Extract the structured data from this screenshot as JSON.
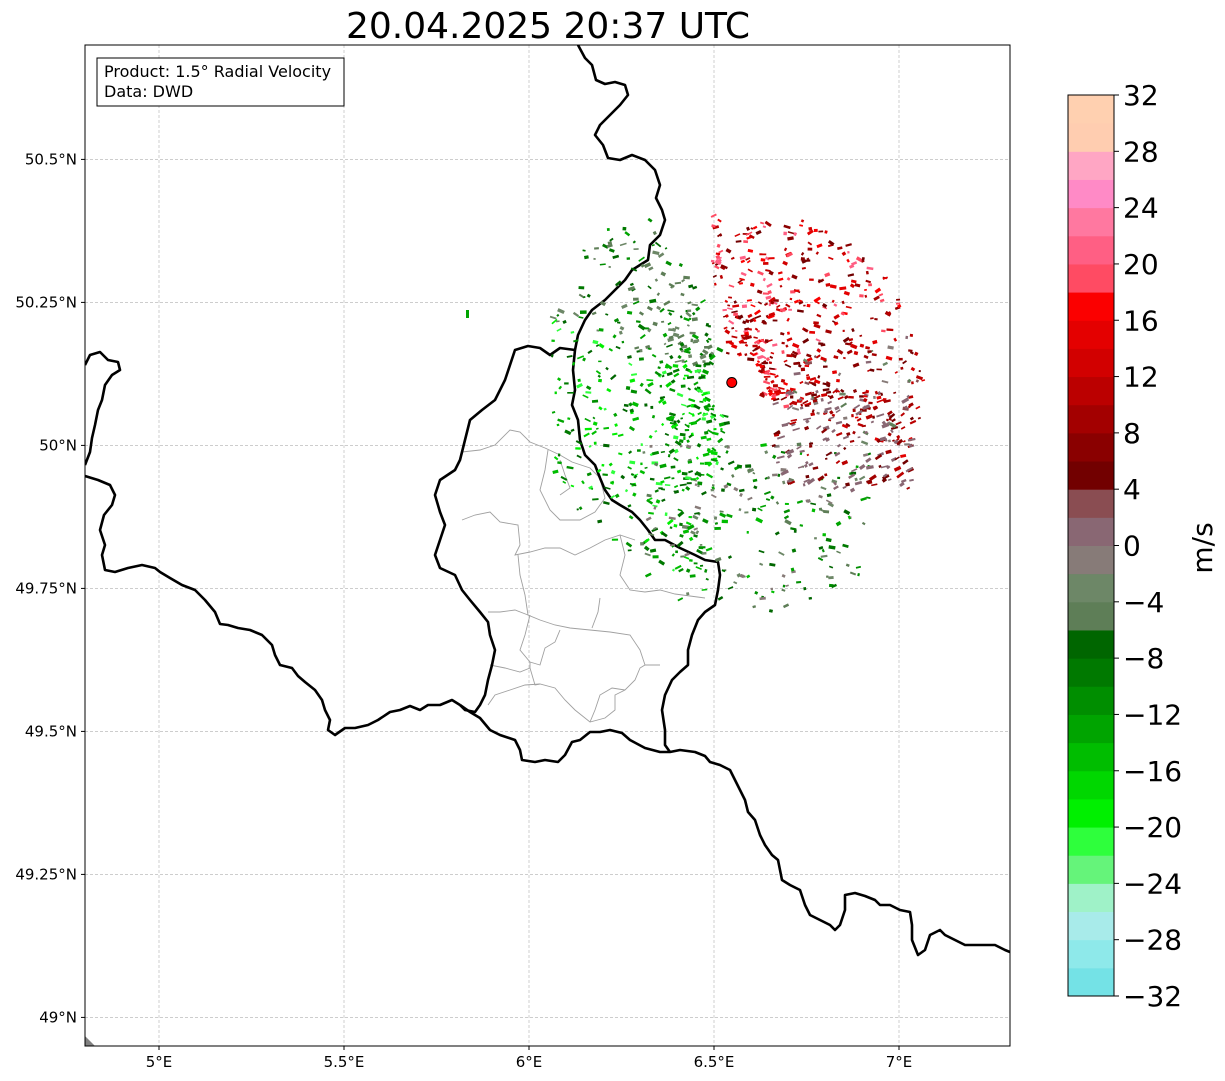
{
  "title": "20.04.2025 20:37 UTC",
  "info_box": {
    "product_line": "Product: 1.5° Radial Velocity",
    "data_line": "Data: DWD"
  },
  "map": {
    "lon_range": [
      4.8,
      7.3
    ],
    "lat_range": [
      48.95,
      50.7
    ],
    "lon_ticks": [
      {
        "value": 5.0,
        "label": "5°E"
      },
      {
        "value": 5.5,
        "label": "5.5°E"
      },
      {
        "value": 6.0,
        "label": "6°E"
      },
      {
        "value": 6.5,
        "label": "6.5°E"
      },
      {
        "value": 7.0,
        "label": "7°E"
      }
    ],
    "lat_ticks": [
      {
        "value": 50.5,
        "label": "50.5°N"
      },
      {
        "value": 50.25,
        "label": "50.25°N"
      },
      {
        "value": 50.0,
        "label": "50°N"
      },
      {
        "value": 49.75,
        "label": "49.75°N"
      },
      {
        "value": 49.5,
        "label": "49.5°N"
      },
      {
        "value": 49.25,
        "label": "49.25°N"
      },
      {
        "value": 49.0,
        "label": "49°N"
      }
    ],
    "grid": true,
    "radar_site": {
      "lon": 6.548,
      "lat": 50.11
    }
  },
  "colorbar": {
    "label": "m/s",
    "vmin": -32,
    "vmax": 32,
    "tick_labels": [
      "32",
      "28",
      "24",
      "20",
      "16",
      "12",
      "8",
      "4",
      "0",
      "−4",
      "−8",
      "−12",
      "−16",
      "−20",
      "−24",
      "−28",
      "−32"
    ],
    "colors_bottom_to_top": [
      "#74e2e6",
      "#8ee9ea",
      "#a8ebea",
      "#9ff2c8",
      "#65f47a",
      "#2eff3c",
      "#00f000",
      "#00d700",
      "#00bd00",
      "#00a400",
      "#008e00",
      "#007900",
      "#006600",
      "#5e7e57",
      "#6d8767",
      "#877b78",
      "#896773",
      "#8a4d52",
      "#720000",
      "#8a0000",
      "#a30000",
      "#bb0000",
      "#d20000",
      "#e40000",
      "#fb0000",
      "#ff4b63",
      "#ff5f84",
      "#ff78a0",
      "#ff8ac6",
      "#ffa6c4",
      "#ffcdb0",
      "#ffd0b0"
    ]
  }
}
